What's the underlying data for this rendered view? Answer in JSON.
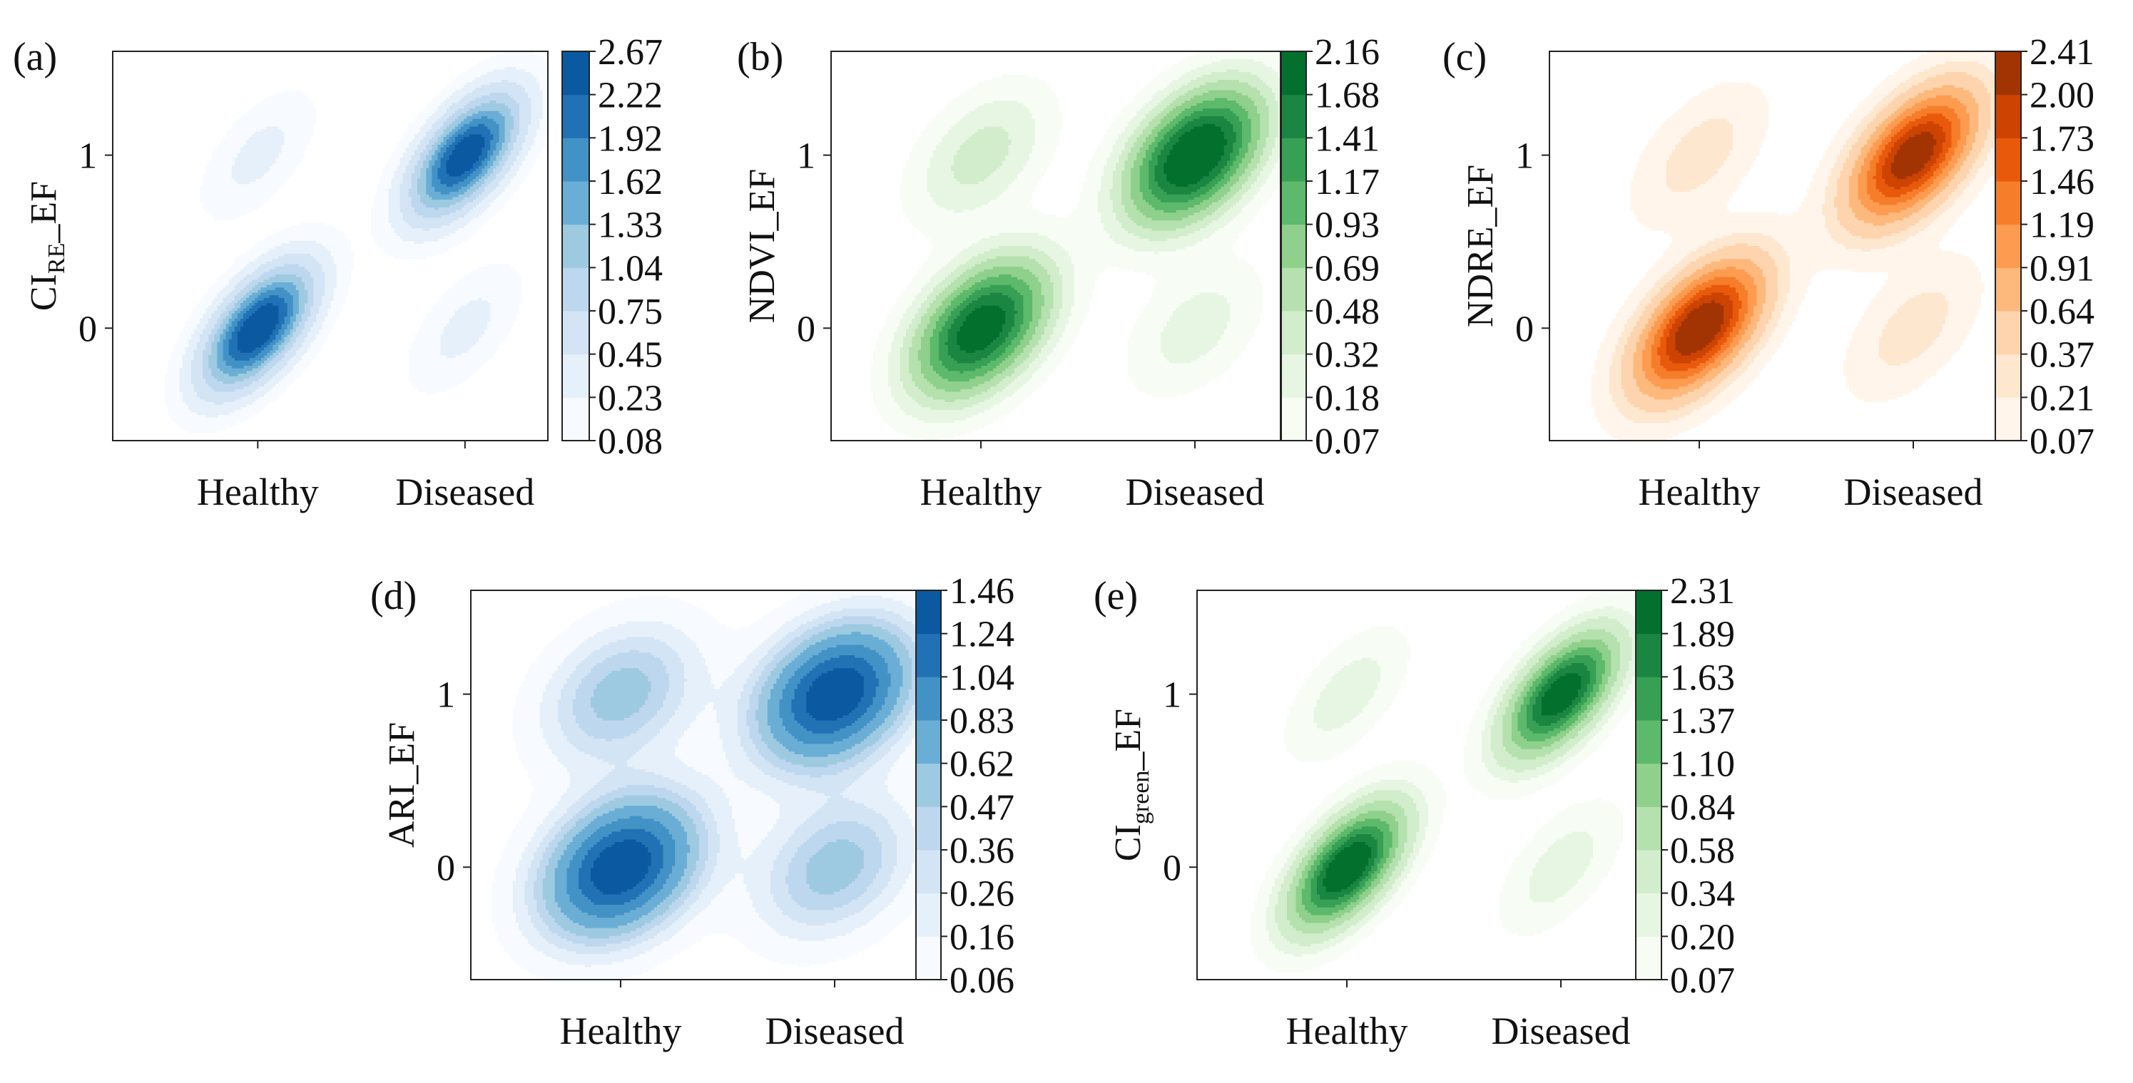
{
  "chart_data": [
    {
      "panel": "(a)",
      "type": "kde_contour",
      "cmap": "blues",
      "ylabel_main": "CI",
      "ylabel_sub": "RE",
      "ylabel_tail": "_EF",
      "ylabel": "CI_RE_EF",
      "categories": [
        "Healthy",
        "Diseased"
      ],
      "yticks": [
        "0",
        "1"
      ],
      "xlim": [
        -0.7,
        1.4
      ],
      "ylim": [
        -0.65,
        1.6
      ],
      "levels": [
        "0.08",
        "0.23",
        "0.45",
        "0.75",
        "1.04",
        "1.33",
        "1.62",
        "1.92",
        "2.22",
        "2.67"
      ],
      "peaks": [
        {
          "x": 0,
          "y": 0,
          "h": 2.67,
          "sx": 0.17,
          "sy": 0.23,
          "rho": 0.6
        },
        {
          "x": 1,
          "y": 1,
          "h": 2.55,
          "sx": 0.17,
          "sy": 0.23,
          "rho": 0.6
        },
        {
          "x": 0,
          "y": 1,
          "h": 0.3,
          "sx": 0.17,
          "sy": 0.23,
          "rho": 0.6
        },
        {
          "x": 1,
          "y": 0,
          "h": 0.3,
          "sx": 0.17,
          "sy": 0.23,
          "rho": 0.6
        }
      ]
    },
    {
      "panel": "(b)",
      "type": "kde_contour",
      "cmap": "greens",
      "ylabel_main": "NDVI_EF",
      "ylabel_sub": "",
      "ylabel_tail": "",
      "ylabel": "NDVI_EF",
      "categories": [
        "Healthy",
        "Diseased"
      ],
      "yticks": [
        "0",
        "1"
      ],
      "xlim": [
        -0.7,
        1.4
      ],
      "ylim": [
        -0.65,
        1.6
      ],
      "levels": [
        "0.07",
        "0.18",
        "0.32",
        "0.48",
        "0.69",
        "0.93",
        "1.17",
        "1.41",
        "1.68",
        "2.16"
      ],
      "peaks": [
        {
          "x": 0,
          "y": 0,
          "h": 1.95,
          "sx": 0.2,
          "sy": 0.25,
          "rho": 0.45
        },
        {
          "x": 1,
          "y": 1,
          "h": 2.16,
          "sx": 0.2,
          "sy": 0.25,
          "rho": 0.45
        },
        {
          "x": 0,
          "y": 1,
          "h": 0.4,
          "sx": 0.2,
          "sy": 0.25,
          "rho": 0.45
        },
        {
          "x": 1,
          "y": 0,
          "h": 0.25,
          "sx": 0.2,
          "sy": 0.25,
          "rho": 0.45
        }
      ]
    },
    {
      "panel": "(c)",
      "type": "kde_contour",
      "cmap": "oranges",
      "ylabel_main": "NDRE_EF",
      "ylabel_sub": "",
      "ylabel_tail": "",
      "ylabel": "NDRE_EF",
      "categories": [
        "Healthy",
        "Diseased"
      ],
      "yticks": [
        "0",
        "1"
      ],
      "xlim": [
        -0.7,
        1.4
      ],
      "ylim": [
        -0.65,
        1.6
      ],
      "levels": [
        "0.07",
        "0.21",
        "0.37",
        "0.64",
        "0.91",
        "1.19",
        "1.46",
        "1.73",
        "2.00",
        "2.41"
      ],
      "peaks": [
        {
          "x": 0,
          "y": 0,
          "h": 2.41,
          "sx": 0.19,
          "sy": 0.25,
          "rho": 0.55
        },
        {
          "x": 1,
          "y": 1,
          "h": 2.3,
          "sx": 0.19,
          "sy": 0.25,
          "rho": 0.55
        },
        {
          "x": 0,
          "y": 1,
          "h": 0.3,
          "sx": 0.19,
          "sy": 0.25,
          "rho": 0.55
        },
        {
          "x": 1,
          "y": 0,
          "h": 0.3,
          "sx": 0.19,
          "sy": 0.25,
          "rho": 0.55
        }
      ]
    },
    {
      "panel": "(d)",
      "type": "kde_contour",
      "cmap": "blues",
      "ylabel_main": "ARI_EF",
      "ylabel_sub": "",
      "ylabel_tail": "",
      "ylabel": "ARI_EF",
      "categories": [
        "Healthy",
        "Diseased"
      ],
      "yticks": [
        "0",
        "1"
      ],
      "xlim": [
        -0.7,
        1.4
      ],
      "ylim": [
        -0.65,
        1.6
      ],
      "levels": [
        "0.06",
        "0.16",
        "0.26",
        "0.36",
        "0.47",
        "0.62",
        "0.83",
        "1.04",
        "1.24",
        "1.46"
      ],
      "peaks": [
        {
          "x": 0,
          "y": 0,
          "h": 1.46,
          "sx": 0.24,
          "sy": 0.27,
          "rho": 0.3
        },
        {
          "x": 1,
          "y": 1,
          "h": 1.46,
          "sx": 0.24,
          "sy": 0.27,
          "rho": 0.3
        },
        {
          "x": 0,
          "y": 1,
          "h": 0.55,
          "sx": 0.24,
          "sy": 0.27,
          "rho": 0.3
        },
        {
          "x": 1,
          "y": 0,
          "h": 0.55,
          "sx": 0.24,
          "sy": 0.27,
          "rho": 0.3
        }
      ]
    },
    {
      "panel": "(e)",
      "type": "kde_contour",
      "cmap": "greens",
      "ylabel_main": "CI",
      "ylabel_sub": "green",
      "ylabel_tail": "_EF",
      "ylabel": "CI_green_EF",
      "categories": [
        "Healthy",
        "Diseased"
      ],
      "yticks": [
        "0",
        "1"
      ],
      "xlim": [
        -0.7,
        1.4
      ],
      "ylim": [
        -0.65,
        1.6
      ],
      "levels": [
        "0.07",
        "0.20",
        "0.34",
        "0.58",
        "0.84",
        "1.10",
        "1.37",
        "1.63",
        "1.89",
        "2.31"
      ],
      "peaks": [
        {
          "x": 0,
          "y": 0,
          "h": 2.31,
          "sx": 0.17,
          "sy": 0.23,
          "rho": 0.6
        },
        {
          "x": 1,
          "y": 1,
          "h": 2.2,
          "sx": 0.17,
          "sy": 0.23,
          "rho": 0.6
        },
        {
          "x": 0,
          "y": 1,
          "h": 0.3,
          "sx": 0.17,
          "sy": 0.23,
          "rho": 0.6
        },
        {
          "x": 1,
          "y": 0,
          "h": 0.3,
          "sx": 0.17,
          "sy": 0.23,
          "rho": 0.6
        }
      ]
    }
  ],
  "colormaps": {
    "blues": [
      "#f7fbff",
      "#e6f0fa",
      "#d3e4f4",
      "#bdd7ee",
      "#9ecae1",
      "#6aaed6",
      "#4292c6",
      "#2171b5",
      "#0b59a1",
      "#08306b"
    ],
    "greens": [
      "#f7fcf5",
      "#e7f6e2",
      "#d2edcb",
      "#b4e1ad",
      "#8fd08c",
      "#5db96b",
      "#37a055",
      "#1b8642",
      "#03702e",
      "#00441b"
    ],
    "oranges": [
      "#fff5eb",
      "#fee7cf",
      "#fdd4ad",
      "#fdb87c",
      "#fd9b51",
      "#f67d2a",
      "#e8590c",
      "#cc4302",
      "#a23403",
      "#7f2704"
    ]
  }
}
